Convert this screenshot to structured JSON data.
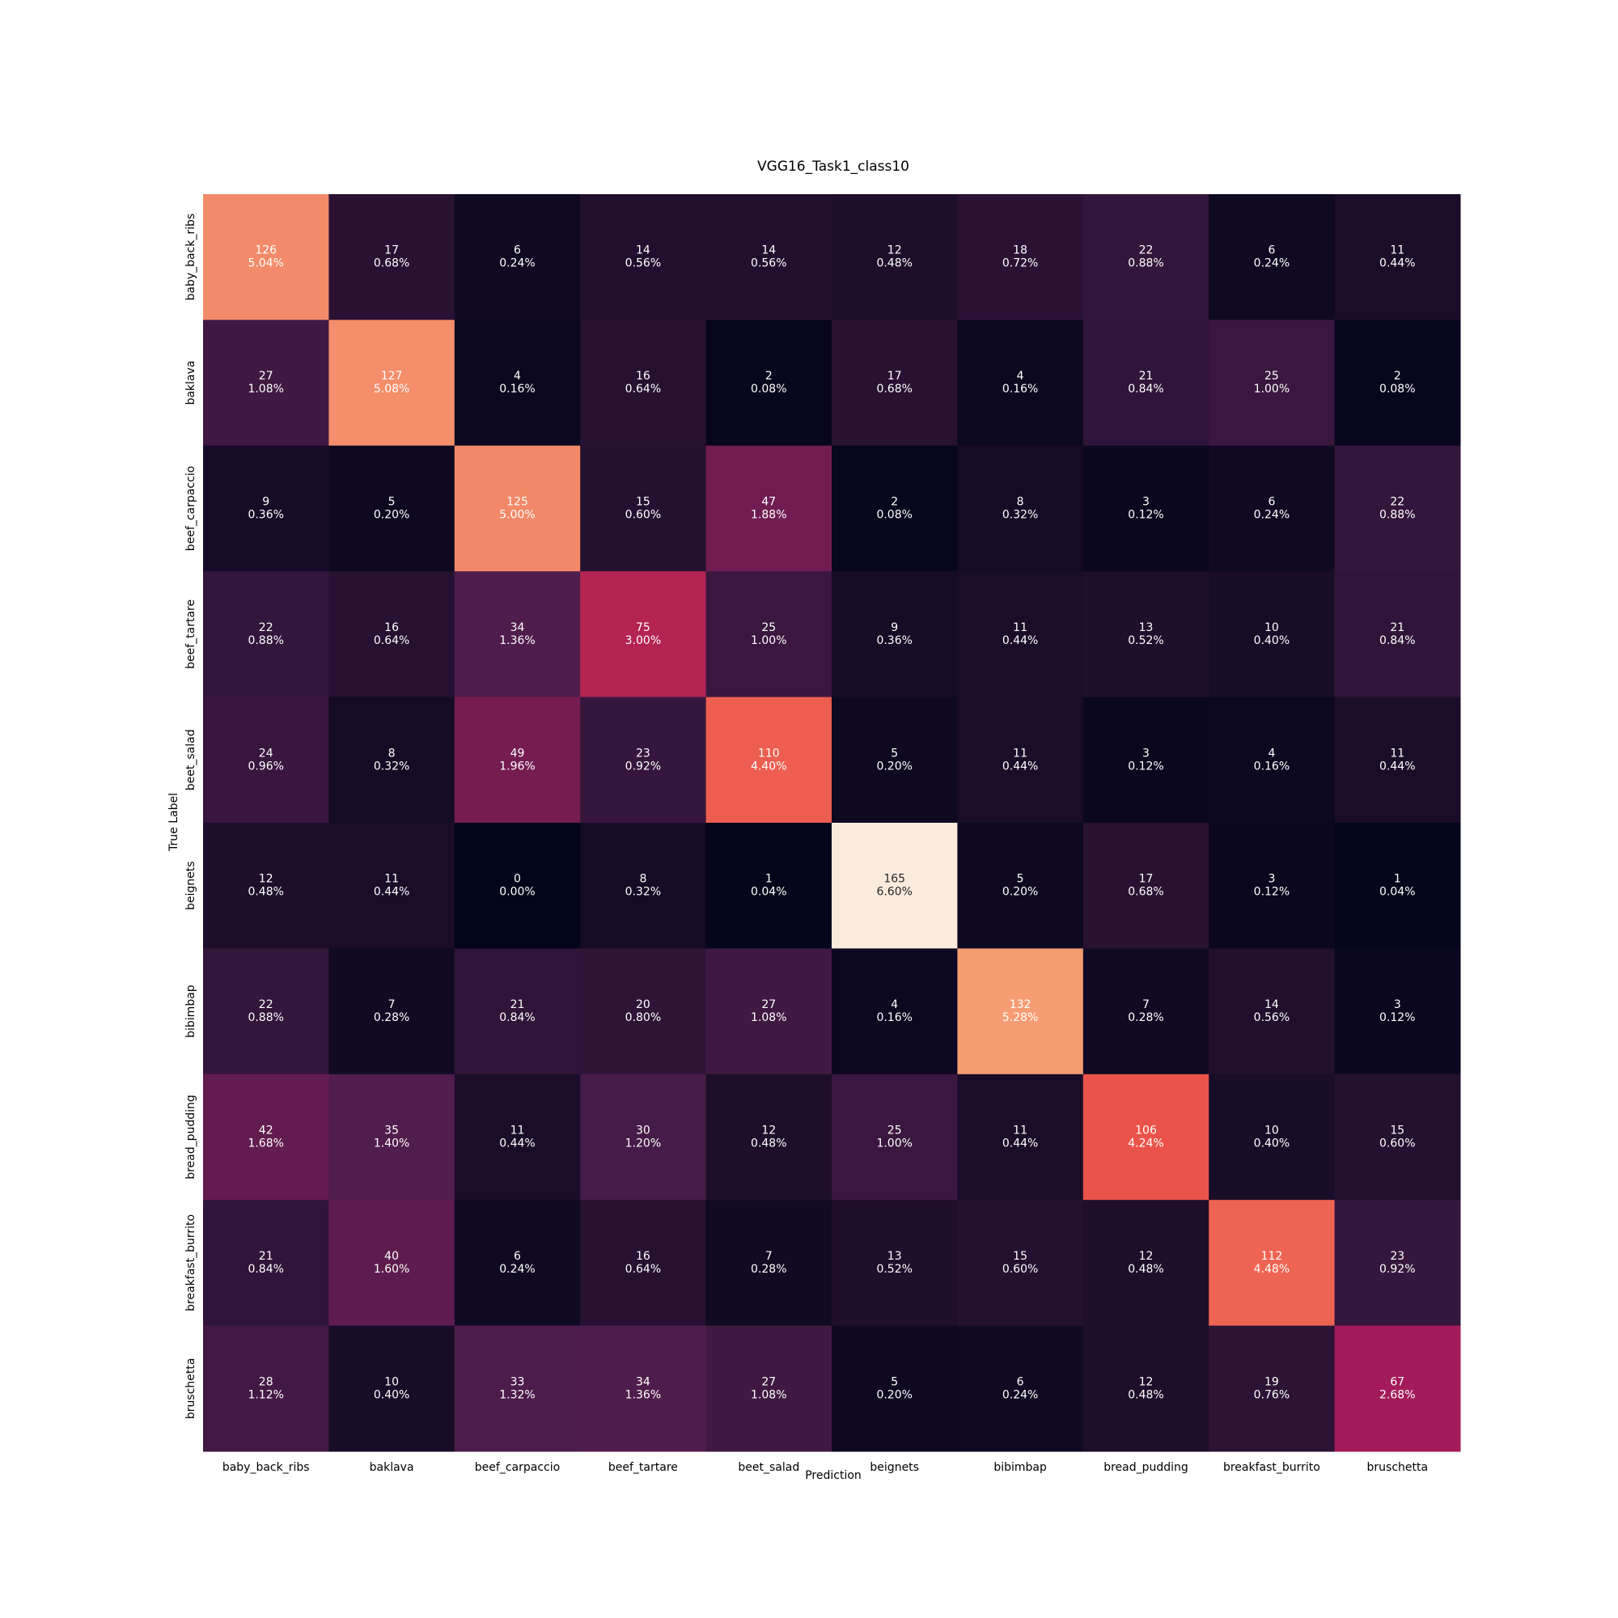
{
  "chart_data": {
    "type": "heatmap",
    "title": "VGG16_Task1_class10",
    "xlabel": "Prediction",
    "ylabel": "True Label",
    "x_categories": [
      "baby_back_ribs",
      "baklava",
      "beef_carpaccio",
      "beef_tartare",
      "beet_salad",
      "beignets",
      "bibimbap",
      "bread_pudding",
      "breakfast_burrito",
      "bruschetta"
    ],
    "y_categories": [
      "baby_back_ribs",
      "baklava",
      "beef_carpaccio",
      "beef_tartare",
      "beet_salad",
      "beignets",
      "bibimbap",
      "bread_pudding",
      "breakfast_burrito",
      "bruschetta"
    ],
    "counts": [
      [
        126,
        17,
        6,
        14,
        14,
        12,
        18,
        22,
        6,
        11
      ],
      [
        27,
        127,
        4,
        16,
        2,
        17,
        4,
        21,
        25,
        2
      ],
      [
        9,
        5,
        125,
        15,
        47,
        2,
        8,
        3,
        6,
        22
      ],
      [
        22,
        16,
        34,
        75,
        25,
        9,
        11,
        13,
        10,
        21
      ],
      [
        24,
        8,
        49,
        23,
        110,
        5,
        11,
        3,
        4,
        11
      ],
      [
        12,
        11,
        0,
        8,
        1,
        165,
        5,
        17,
        3,
        1
      ],
      [
        22,
        7,
        21,
        20,
        27,
        4,
        132,
        7,
        14,
        3
      ],
      [
        42,
        35,
        11,
        30,
        12,
        25,
        11,
        106,
        10,
        15
      ],
      [
        21,
        40,
        6,
        16,
        7,
        13,
        15,
        12,
        112,
        23
      ],
      [
        28,
        10,
        33,
        34,
        27,
        5,
        6,
        12,
        19,
        67
      ]
    ],
    "percents": [
      [
        "5.04%",
        "0.68%",
        "0.24%",
        "0.56%",
        "0.56%",
        "0.48%",
        "0.72%",
        "0.88%",
        "0.24%",
        "0.44%"
      ],
      [
        "1.08%",
        "5.08%",
        "0.16%",
        "0.64%",
        "0.08%",
        "0.68%",
        "0.16%",
        "0.84%",
        "1.00%",
        "0.08%"
      ],
      [
        "0.36%",
        "0.20%",
        "5.00%",
        "0.60%",
        "1.88%",
        "0.08%",
        "0.32%",
        "0.12%",
        "0.24%",
        "0.88%"
      ],
      [
        "0.88%",
        "0.64%",
        "1.36%",
        "3.00%",
        "1.00%",
        "0.36%",
        "0.44%",
        "0.52%",
        "0.40%",
        "0.84%"
      ],
      [
        "0.96%",
        "0.32%",
        "1.96%",
        "0.92%",
        "4.40%",
        "0.20%",
        "0.44%",
        "0.12%",
        "0.16%",
        "0.44%"
      ],
      [
        "0.48%",
        "0.44%",
        "0.00%",
        "0.32%",
        "0.04%",
        "6.60%",
        "0.20%",
        "0.68%",
        "0.12%",
        "0.04%"
      ],
      [
        "0.88%",
        "0.28%",
        "0.84%",
        "0.80%",
        "1.08%",
        "0.16%",
        "5.28%",
        "0.28%",
        "0.56%",
        "0.12%"
      ],
      [
        "1.68%",
        "1.40%",
        "0.44%",
        "1.20%",
        "0.48%",
        "1.00%",
        "0.44%",
        "4.24%",
        "0.40%",
        "0.60%"
      ],
      [
        "0.84%",
        "1.60%",
        "0.24%",
        "0.64%",
        "0.28%",
        "0.52%",
        "0.60%",
        "0.48%",
        "4.48%",
        "0.92%"
      ],
      [
        "1.12%",
        "0.40%",
        "1.32%",
        "1.36%",
        "1.08%",
        "0.20%",
        "0.24%",
        "0.48%",
        "0.76%",
        "2.68%"
      ]
    ],
    "value_range": [
      0,
      165
    ],
    "colormap": [
      "#03051a",
      "#4c1d4b",
      "#a11a5b",
      "#e83f3f",
      "#f69c73",
      "#faebdd"
    ],
    "colorbar": false,
    "grid": false
  }
}
